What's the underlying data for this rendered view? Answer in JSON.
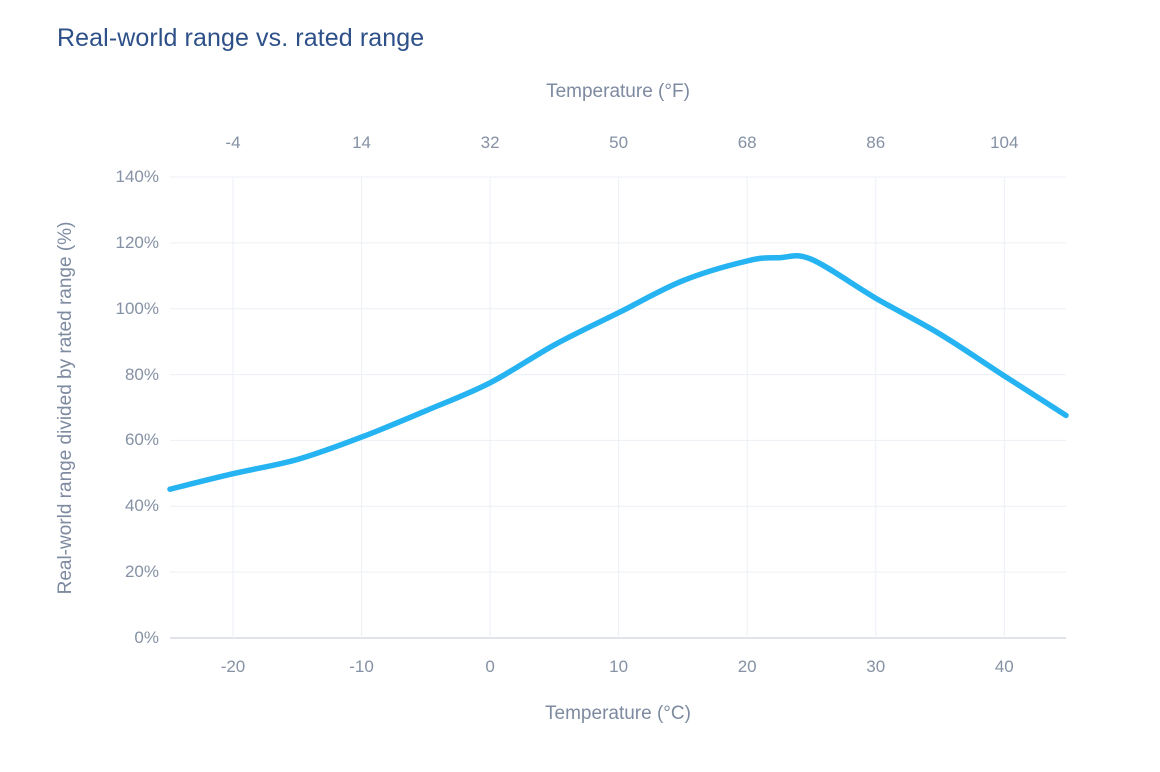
{
  "title": "Real-world range vs. rated range",
  "colors": {
    "background": "#ffffff",
    "title_text": "#2d5089",
    "axis_title_text": "#7d8aa0",
    "tick_label_text": "#8591a4",
    "gridline": "#eceff5",
    "axis_line": "#d5dae3",
    "curve": "#25b3f2"
  },
  "chart_data": {
    "type": "line",
    "title": "Real-world range vs. rated range",
    "xlabel_bottom": "Temperature (°C)",
    "xlabel_top": "Temperature (°F)",
    "ylabel": "Real-world range divided by rated range (%)",
    "grid": true,
    "legend": "none",
    "x_axis_bottom": {
      "label": "Temperature (°C)",
      "range": [
        -24.9,
        44.8
      ],
      "ticks": [
        {
          "value": -20,
          "label": "-20"
        },
        {
          "value": -10,
          "label": "-10"
        },
        {
          "value": 0,
          "label": "0"
        },
        {
          "value": 10,
          "label": "10"
        },
        {
          "value": 20,
          "label": "20"
        },
        {
          "value": 30,
          "label": "30"
        },
        {
          "value": 40,
          "label": "40"
        }
      ]
    },
    "x_axis_top": {
      "label": "Temperature (°F)",
      "note": "aligned to Celsius axis via C = (F - 32) / 1.8",
      "ticks": [
        {
          "value": -4,
          "label": "-4"
        },
        {
          "value": 14,
          "label": "14"
        },
        {
          "value": 32,
          "label": "32"
        },
        {
          "value": 50,
          "label": "50"
        },
        {
          "value": 68,
          "label": "68"
        },
        {
          "value": 86,
          "label": "86"
        },
        {
          "value": 104,
          "label": "104"
        }
      ]
    },
    "y_axis": {
      "label": "Real-world range divided by rated range (%)",
      "range": [
        0,
        140
      ],
      "ticks": [
        {
          "value": 0,
          "label": "0%"
        },
        {
          "value": 20,
          "label": "20%"
        },
        {
          "value": 40,
          "label": "40%"
        },
        {
          "value": 60,
          "label": "60%"
        },
        {
          "value": 80,
          "label": "80%"
        },
        {
          "value": 100,
          "label": "100%"
        },
        {
          "value": 120,
          "label": "120%"
        },
        {
          "value": 140,
          "label": "140%"
        }
      ]
    },
    "series": [
      {
        "name": "Real-world range divided by rated range",
        "color": "#25b3f2",
        "stroke_width": 5.5,
        "points": [
          [
            -24.9,
            45.2
          ],
          [
            -20,
            49.9
          ],
          [
            -15,
            54.2
          ],
          [
            -10,
            61.0
          ],
          [
            -5,
            69.0
          ],
          [
            0,
            77.5
          ],
          [
            5,
            89.0
          ],
          [
            10,
            98.8
          ],
          [
            15,
            108.5
          ],
          [
            20,
            114.5
          ],
          [
            22.5,
            115.5
          ],
          [
            25,
            115.0
          ],
          [
            30,
            103.2
          ],
          [
            35,
            92.3
          ],
          [
            40,
            79.6
          ],
          [
            44.8,
            67.6
          ]
        ]
      }
    ]
  },
  "layout_note": "peak ~115% near 22 °C; curve spans -25 °C (45%) to 45 °C (68%)"
}
